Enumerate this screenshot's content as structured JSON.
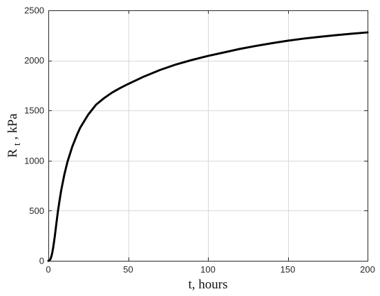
{
  "chart_data": {
    "type": "line",
    "xlabel": "t, hours",
    "ylabel_main": "R",
    "ylabel_sub": "t",
    "ylabel_rest": ", kPa",
    "xlim": [
      0,
      200
    ],
    "ylim": [
      0,
      2500
    ],
    "xticks": [
      0,
      50,
      100,
      150,
      200
    ],
    "yticks": [
      0,
      500,
      1000,
      1500,
      2000,
      2500
    ],
    "grid": true,
    "line_color": "#000000",
    "series": [
      {
        "x": [
          0,
          0.5,
          1,
          1.5,
          2,
          2.5,
          3,
          4,
          5,
          6,
          7,
          8,
          10,
          12,
          15,
          18,
          20,
          25,
          30,
          35,
          40,
          45,
          50,
          60,
          70,
          80,
          90,
          100,
          110,
          120,
          130,
          140,
          150,
          160,
          170,
          180,
          190,
          200
        ],
        "y": [
          0,
          2,
          10,
          25,
          50,
          85,
          130,
          240,
          370,
          495,
          600,
          700,
          860,
          990,
          1140,
          1260,
          1330,
          1460,
          1560,
          1625,
          1680,
          1725,
          1765,
          1840,
          1905,
          1960,
          2005,
          2045,
          2080,
          2115,
          2145,
          2172,
          2197,
          2218,
          2236,
          2252,
          2267,
          2280
        ]
      }
    ]
  }
}
